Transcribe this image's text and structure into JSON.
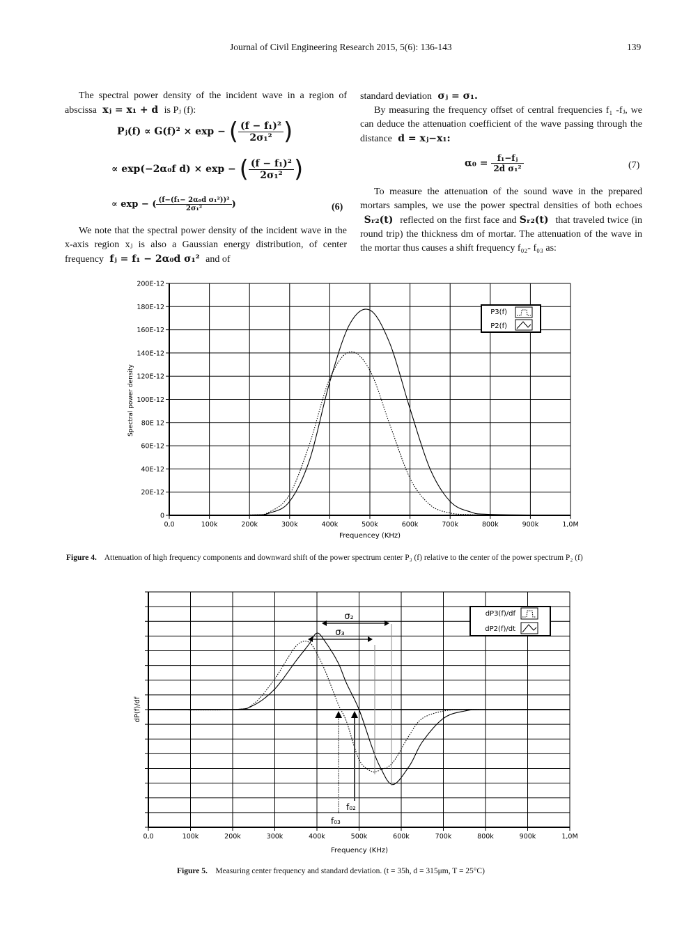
{
  "header": {
    "journal": "Journal of Civil Engineering Research 2015, 5(6): 136-143",
    "page_number": "139"
  },
  "left_column": {
    "para1_a": "The spectral power density of the incident wave in a region of abscissa",
    "para1_eq": "xⱼ = x₁ + d",
    "para1_b": "is Pⱼ (f):",
    "eq6_line1_lhs": "Pⱼ(f)   ∝  G(f)² ×  exp −",
    "eq6_line1_num": "(f − f₁)²",
    "eq6_line1_den": "2σ₁²",
    "eq6_line2_lhs": "∝   exp(−2α₀f d)  × exp −",
    "eq6_line2_num": "(f − f₁)²",
    "eq6_line2_den": "2σ₁²",
    "eq6_line3_lhs": "∝   exp − (",
    "eq6_line3_num": "(f−(f₁− 2α₀d σ₁²))²",
    "eq6_line3_den": "2σ₁²",
    "eq6_line3_close": ")",
    "eq6_number": "(6)",
    "para2": "We note that the spectral power density of the incident wave in the x-axis region xⱼ is also a Gaussian energy distribution, of center frequency",
    "para2_eq": "fⱼ = f₁ − 2α₀d σ₁²",
    "para2_end": "and of"
  },
  "right_column": {
    "line1_a": "standard deviation",
    "line1_eq": "σⱼ = σ₁.",
    "para2": "By measuring the frequency offset of central frequencies f₁ -fⱼ, we can deduce the attenuation coefficient of the wave passing through the distance",
    "para2_eq": "d = xⱼ−x₁:",
    "eq7_lhs": "α₀  =",
    "eq7_num": "f₁−fⱼ",
    "eq7_den": "2d σ₁²",
    "eq7_number": "(7)",
    "para3_a": "To measure the attenuation of the sound wave in the prepared mortars samples, we use the power spectral densities of both echoes",
    "para3_s1": "Sᵣ₂(t)",
    "para3_b": "reflected on the first face and",
    "para3_s2": "Sᵣ₂(t)",
    "para3_c": "that traveled twice (in round trip) the thickness dm of mortar. The attenuation of the wave in the mortar thus causes a shift frequency f₀₂- f₀₃ as:"
  },
  "figure4": {
    "caption_label": "Figure 4.",
    "caption_text": "Attenuation of high frequency components and downward shift of the power spectrum center P₃ (f) relative to the center of the power spectrum P₂ (f)"
  },
  "figure5": {
    "caption_label": "Figure 5.",
    "caption_text": "Measuring center frequency and standard deviation. (t = 35h, d = 315μm, T = 25°C)"
  },
  "chart_data": [
    {
      "type": "line",
      "title": "",
      "xlabel": "Frequencey (KHz)",
      "ylabel": "Spectral power density",
      "x_ticks": [
        "0,0",
        "100k",
        "200k",
        "300k",
        "400k",
        "500k",
        "600k",
        "700k",
        "800k",
        "900k",
        "1,0M"
      ],
      "y_ticks": [
        "0",
        "20E-12",
        "40E-12",
        "60E-12",
        "80E 12",
        "100E-12",
        "120E-12",
        "140E-12",
        "160E-12",
        "180E-12",
        "200E-12"
      ],
      "xlim": [
        0,
        1000000
      ],
      "ylim": [
        0,
        2e-10
      ],
      "grid": true,
      "legend_position": "upper right",
      "x": [
        0,
        200000,
        250000,
        300000,
        350000,
        400000,
        450000,
        500000,
        550000,
        600000,
        650000,
        700000,
        750000,
        800000,
        1000000
      ],
      "series": [
        {
          "name": "P3(f)",
          "style": "dotted",
          "values": [
            0,
            3e-13,
            3e-12,
            1.8e-11,
            6.2e-11,
            1.18e-10,
            1.41e-10,
            1.25e-10,
            7.8e-11,
            3.2e-11,
            9e-12,
            2e-12,
            6e-13,
            2e-13,
            0
          ]
        },
        {
          "name": "P2(f)",
          "style": "solid",
          "values": [
            0,
            3e-13,
            2e-12,
            1.2e-11,
            4.8e-11,
            1.15e-10,
            1.65e-10,
            1.77e-10,
            1.48e-10,
            9.2e-11,
            4e-11,
            1.2e-11,
            3e-12,
            8e-13,
            0
          ]
        }
      ],
      "annotations": []
    },
    {
      "type": "line",
      "title": "",
      "xlabel": "Frequency (KHz)",
      "ylabel": "dP(f)/df",
      "x_ticks": [
        "0,0",
        "100k",
        "200k",
        "300k",
        "400k",
        "500k",
        "600k",
        "700k",
        "800k",
        "900k",
        "1,0M"
      ],
      "y_ticks": [],
      "xlim": [
        0,
        1000000
      ],
      "ylim": [
        -8,
        8
      ],
      "grid": true,
      "legend_position": "upper right",
      "x": [
        0,
        200000,
        250000,
        300000,
        350000,
        380000,
        400000,
        420000,
        450000,
        470000,
        500000,
        530000,
        550000,
        580000,
        620000,
        650000,
        700000,
        750000,
        800000,
        1000000
      ],
      "series": [
        {
          "name": "dP3(f)/df",
          "style": "dotted",
          "values": [
            0,
            0,
            0.4,
            2.1,
            4.3,
            4.6,
            3.8,
            2.6,
            0.4,
            -0.8,
            -3.4,
            -4.2,
            -4.1,
            -3.6,
            -1.7,
            -0.6,
            -0.1,
            0,
            0,
            0
          ]
        },
        {
          "name": "dP2(f)/df",
          "style": "solid",
          "values": [
            0,
            0,
            0.3,
            1.4,
            3.3,
            4.4,
            5.2,
            4.6,
            3.2,
            1.8,
            0,
            -2.5,
            -3.9,
            -5.1,
            -3.8,
            -2.2,
            -0.6,
            -0.1,
            0,
            0
          ]
        }
      ],
      "annotations": [
        {
          "label": "σ2",
          "type": "double-arrow",
          "from": 415000,
          "to": 570000
        },
        {
          "label": "σ3",
          "type": "double-arrow",
          "from": 390000,
          "to": 530000
        },
        {
          "label": "f02",
          "type": "up-arrow",
          "x": 495000,
          "style": "solid"
        },
        {
          "label": "f03",
          "type": "up-arrow",
          "x": 455000,
          "style": "dotted"
        }
      ]
    }
  ],
  "chart1": {
    "ylabel": "Spectral power density",
    "xlabel": "Frequencey (KHz)",
    "legend": [
      "P3(f)",
      "P2(f)"
    ],
    "y_ticks": [
      "200E-12",
      "180E-12",
      "160E-12",
      "140E-12",
      "120E-12",
      "100E-12",
      "80E 12",
      "60E-12",
      "40E-12",
      "20E-12",
      "0"
    ],
    "x_ticks": [
      "0,0",
      "100k",
      "200k",
      "300k",
      "400k",
      "500k",
      "600k",
      "700k",
      "800k",
      "900k",
      "1,0M"
    ]
  },
  "chart2": {
    "ylabel": "dP(f)/df",
    "xlabel": "Frequency (KHz)",
    "legend": [
      "dP3(f)/df",
      "dP2(f)/dt"
    ],
    "x_ticks": [
      "0,0",
      "100k",
      "200k",
      "300k",
      "400k",
      "500k",
      "600k",
      "700k",
      "800k",
      "900k",
      "1,0M"
    ],
    "sigma2": "σ₂",
    "sigma3": "σ₃",
    "f02": "f₀₂",
    "f03": "f₀₃"
  }
}
